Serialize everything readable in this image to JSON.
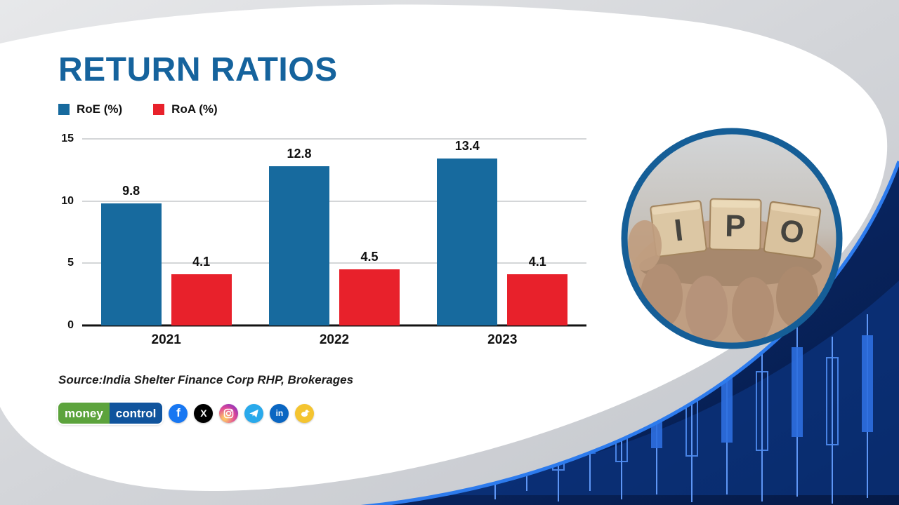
{
  "title": "RETURN RATIOS",
  "legend": [
    {
      "label": "RoE (%)",
      "color": "#176a9e"
    },
    {
      "label": "RoA (%)",
      "color": "#e8212b"
    }
  ],
  "chart_data": {
    "type": "bar",
    "title": "RETURN RATIOS",
    "categories": [
      "2021",
      "2022",
      "2023"
    ],
    "series": [
      {
        "name": "RoE (%)",
        "color": "#176a9e",
        "values": [
          9.8,
          12.8,
          13.4
        ]
      },
      {
        "name": "RoA (%)",
        "color": "#e8212b",
        "values": [
          4.1,
          4.5,
          4.1
        ]
      }
    ],
    "xlabel": "",
    "ylabel": "",
    "ylim": [
      0,
      15
    ],
    "yticks": [
      0,
      5,
      10,
      15
    ],
    "grid": true,
    "legend_position": "top-left"
  },
  "source": "Source:India Shelter Finance Corp RHP, Brokerages",
  "footer": {
    "logo": {
      "part1": "money",
      "part2": "control"
    },
    "social": [
      {
        "name": "facebook",
        "glyph": "f"
      },
      {
        "name": "x",
        "glyph": "X"
      },
      {
        "name": "instagram",
        "glyph": ""
      },
      {
        "name": "telegram",
        "glyph": ""
      },
      {
        "name": "linkedin",
        "glyph": "in"
      },
      {
        "name": "koo",
        "glyph": ""
      }
    ]
  },
  "photo": {
    "blocks": [
      "I",
      "P",
      "O"
    ]
  }
}
